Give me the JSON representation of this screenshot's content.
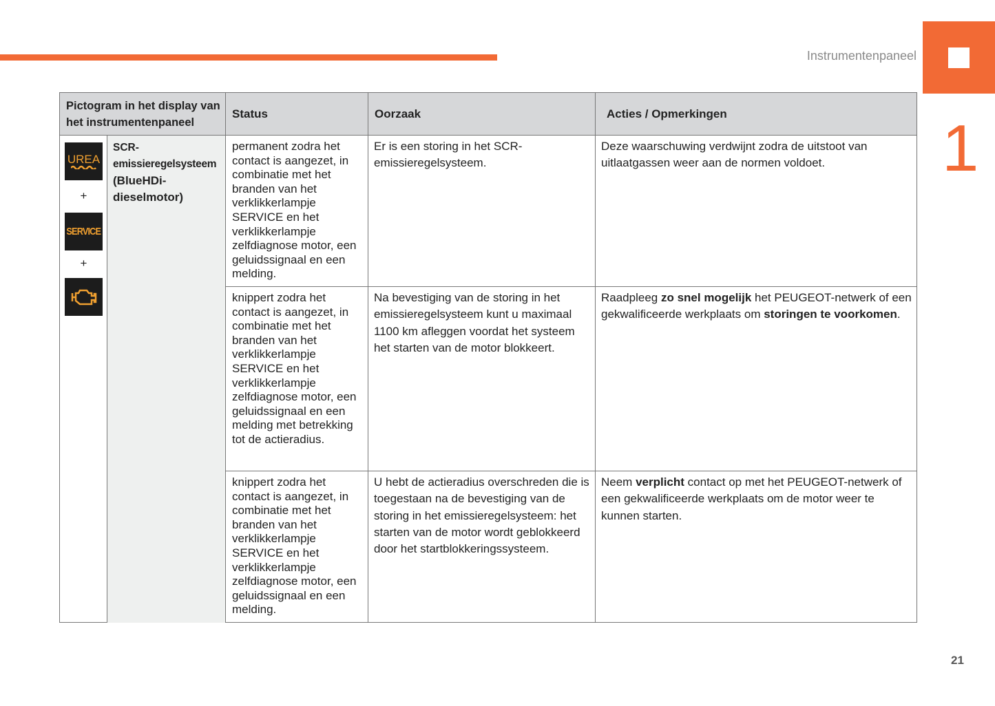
{
  "header": {
    "section_title": "Instrumentenpaneel",
    "chapter_number": "1",
    "page_number": "21",
    "accent_color": "#f26a35"
  },
  "table": {
    "columns": [
      "Pictogram in het display van het instrumentenpaneel",
      "Status",
      "Oorzaak",
      "Acties / Opmerkingen"
    ],
    "pictogram": {
      "icons": [
        {
          "name": "urea-icon",
          "label": "UREA"
        },
        {
          "name": "service-icon",
          "label": "SERVICE"
        },
        {
          "name": "engine-icon"
        }
      ],
      "plus": "+",
      "system_label_1": "SCR-",
      "system_label_2": "emissieregelsysteem",
      "system_label_3": "(BlueHDi-dieselmotor)"
    },
    "rows": [
      {
        "status": "permanent zodra het contact is aangezet, in combinatie met het branden van het verklikkerlampje SERVICE en het verklikkerlampje zelfdiagnose motor, een geluidssignaal en een melding.",
        "cause": [
          {
            "t": "Er is een storing in het SCR-emissieregelsysteem."
          }
        ],
        "action": [
          {
            "t": "Deze waarschuwing verdwijnt zodra de uitstoot van uitlaatgassen weer aan de normen voldoet."
          }
        ]
      },
      {
        "status": "knippert zodra het contact is aangezet, in combinatie met het branden van het verklikkerlampje SERVICE en het verklikkerlampje zelfdiagnose motor, een geluidssignaal en een melding met betrekking tot de actieradius.",
        "cause": [
          {
            "t": "Na bevestiging van de storing in het emissieregelsysteem kunt u maximaal 1100 km afleggen voordat het systeem het starten van de motor blokkeert."
          }
        ],
        "action": [
          {
            "t": "Raadpleeg "
          },
          {
            "t": "zo snel mogelijk",
            "b": true
          },
          {
            "t": " het PEUGEOT-netwerk of een gekwalificeerde werkplaats om "
          },
          {
            "t": "storingen te voorkomen",
            "b": true
          },
          {
            "t": "."
          }
        ]
      },
      {
        "status": "knippert zodra het contact is aangezet, in combinatie met het branden van het verklikkerlampje SERVICE en het verklikkerlampje zelfdiagnose motor, een geluidssignaal en een melding.",
        "cause": [
          {
            "t": "U hebt de actieradius overschreden die is toegestaan na de bevestiging van de storing in het emissieregelsysteem: het starten van de motor wordt geblokkeerd door het startblokkeringssysteem."
          }
        ],
        "action": [
          {
            "t": "Neem "
          },
          {
            "t": "verplicht",
            "b": true
          },
          {
            "t": " contact op met het PEUGEOT-netwerk of een gekwalificeerde werkplaats om de motor weer te kunnen starten."
          }
        ]
      }
    ]
  }
}
